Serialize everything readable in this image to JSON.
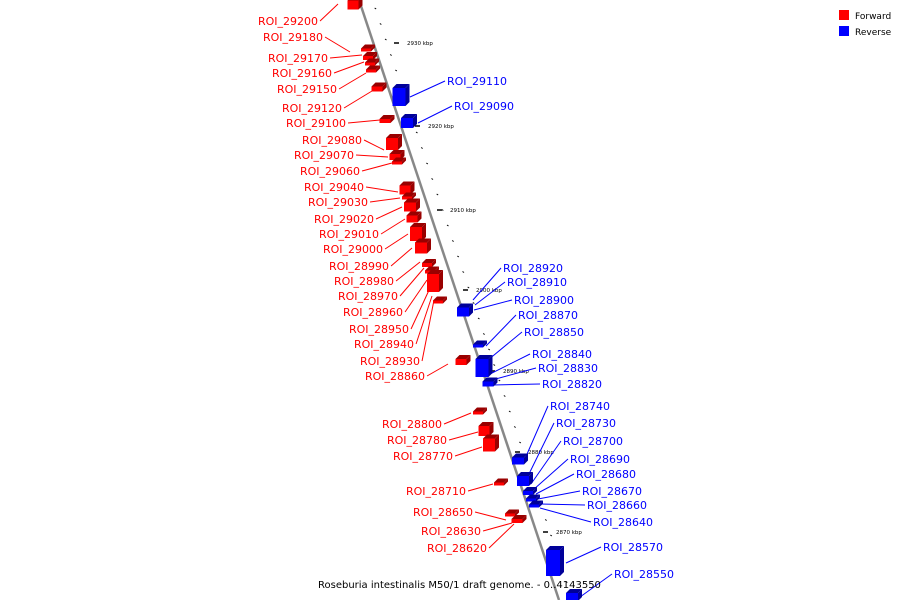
{
  "caption": "Roseburia intestinalis M50/1 draft genome. - 0..4143550",
  "legend": {
    "forward": {
      "label": "Forward",
      "color": "#ff0000"
    },
    "reverse": {
      "label": "Reverse",
      "color": "#0000ff"
    }
  },
  "colors": {
    "backbone": "#888888",
    "forward": "#ff0000",
    "reverse": "#0000ff",
    "forward_dark": "#990000",
    "reverse_dark": "#000099"
  },
  "kbp_marks": [
    "2930 kbp",
    "2920 kbp",
    "2910 kbp",
    "2900 kbp",
    "2890 kbp",
    "2880 kbp",
    "2870 kbp"
  ],
  "forward_labels": [
    "ROI_29200",
    "ROI_29180",
    "ROI_29170",
    "ROI_29160",
    "ROI_29150",
    "ROI_29120",
    "ROI_29100",
    "ROI_29080",
    "ROI_29070",
    "ROI_29060",
    "ROI_29040",
    "ROI_29030",
    "ROI_29020",
    "ROI_29010",
    "ROI_29000",
    "ROI_28990",
    "ROI_28980",
    "ROI_28970",
    "ROI_28960",
    "ROI_28950",
    "ROI_28940",
    "ROI_28930",
    "ROI_28860",
    "ROI_28800",
    "ROI_28780",
    "ROI_28770",
    "ROI_28710",
    "ROI_28650",
    "ROI_28630",
    "ROI_28620"
  ],
  "reverse_labels": [
    "ROI_29110",
    "ROI_29090",
    "ROI_28920",
    "ROI_28910",
    "ROI_28900",
    "ROI_28870",
    "ROI_28850",
    "ROI_28840",
    "ROI_28830",
    "ROI_28820",
    "ROI_28740",
    "ROI_28730",
    "ROI_28700",
    "ROI_28690",
    "ROI_28680",
    "ROI_28670",
    "ROI_28660",
    "ROI_28640",
    "ROI_28570",
    "ROI_28550"
  ]
}
